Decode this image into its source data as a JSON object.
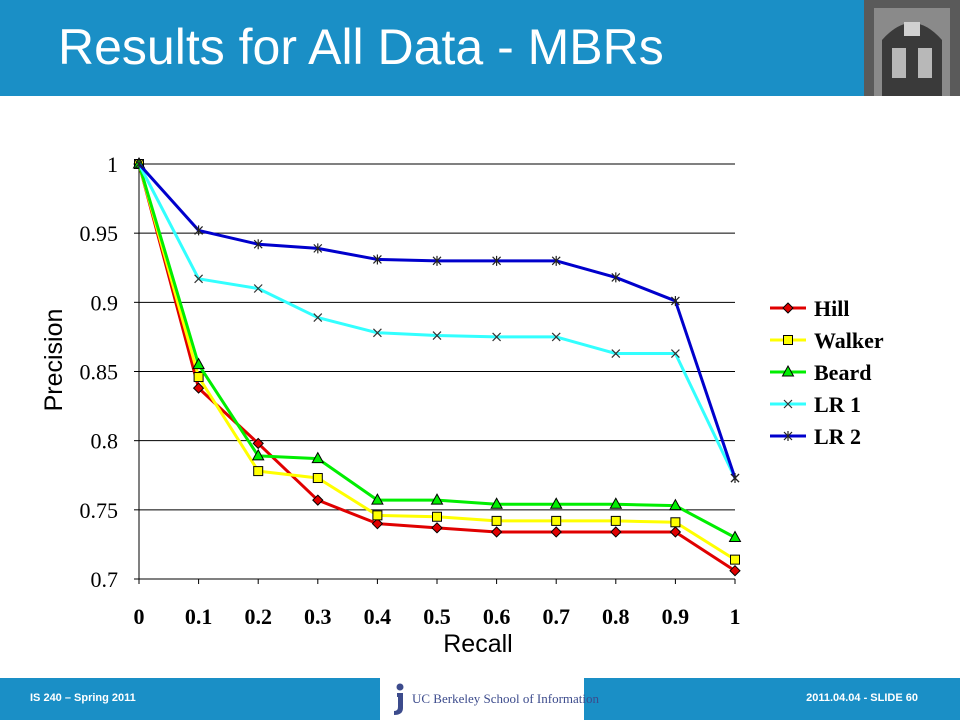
{
  "slide": {
    "title": "Results for All Data - MBRs",
    "footer_left": "IS 240 – Spring 2011",
    "footer_right": "2011.04.04  -  SLIDE 60",
    "logo_text": "UC Berkeley School of Information",
    "colors": {
      "accent": "#1a8fc6",
      "logo": "#3c4b8c"
    }
  },
  "chart_data": {
    "type": "line",
    "xlabel": "Recall",
    "ylabel": "Precision",
    "x": [
      0,
      0.1,
      0.2,
      0.3,
      0.4,
      0.5,
      0.6,
      0.7,
      0.8,
      0.9,
      1
    ],
    "x_tick_labels": [
      "0",
      "0.1",
      "0.2",
      "0.3",
      "0.4",
      "0.5",
      "0.6",
      "0.7",
      "0.8",
      "0.9",
      "1"
    ],
    "ylim": [
      0.7,
      1
    ],
    "y_ticks": [
      0.7,
      0.75,
      0.8,
      0.85,
      0.9,
      0.95,
      1
    ],
    "y_tick_labels": [
      "0.7",
      "0.75",
      "0.8",
      "0.85",
      "0.9",
      "0.95",
      "1"
    ],
    "grid": "horizontal",
    "legend_position": "right",
    "series": [
      {
        "name": "Hill",
        "color": "#e00000",
        "marker": "diamond",
        "values": [
          1.0,
          0.838,
          0.798,
          0.757,
          0.74,
          0.737,
          0.734,
          0.734,
          0.734,
          0.734,
          0.706
        ]
      },
      {
        "name": "Walker",
        "color": "#ffff00",
        "marker": "square",
        "values": [
          1.0,
          0.846,
          0.778,
          0.773,
          0.746,
          0.745,
          0.742,
          0.742,
          0.742,
          0.741,
          0.714
        ]
      },
      {
        "name": "Beard",
        "color": "#00ee00",
        "marker": "triangle",
        "values": [
          1.0,
          0.855,
          0.789,
          0.787,
          0.757,
          0.757,
          0.754,
          0.754,
          0.754,
          0.753,
          0.73
        ]
      },
      {
        "name": "LR 1",
        "color": "#33ffff",
        "marker": "x",
        "values": [
          1.0,
          0.917,
          0.91,
          0.889,
          0.878,
          0.876,
          0.875,
          0.875,
          0.863,
          0.863,
          0.773
        ]
      },
      {
        "name": "LR 2",
        "color": "#0000cc",
        "marker": "star",
        "values": [
          1.0,
          0.952,
          0.942,
          0.939,
          0.931,
          0.93,
          0.93,
          0.93,
          0.918,
          0.901,
          0.773
        ]
      }
    ]
  }
}
